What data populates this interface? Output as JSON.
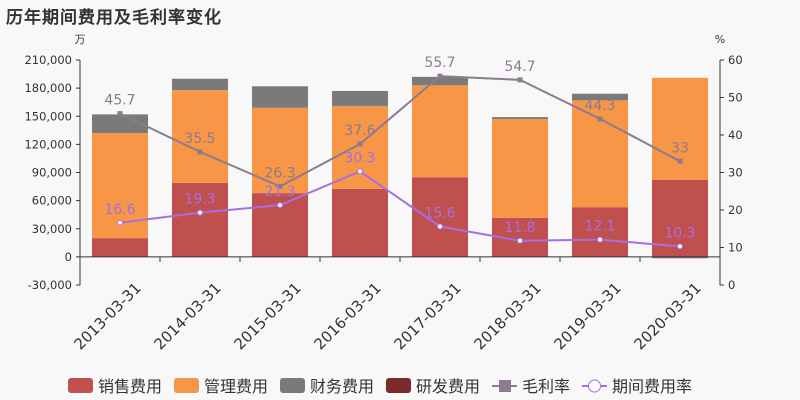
{
  "chart_data": {
    "type": "bar",
    "title": "历年期间费用及毛利率变化",
    "left_unit": "万",
    "right_unit": "%",
    "categories": [
      "2013-03-31",
      "2014-03-31",
      "2015-03-31",
      "2016-03-31",
      "2017-03-31",
      "2018-03-31",
      "2019-03-31",
      "2020-03-31"
    ],
    "left_axis": {
      "min": -30000,
      "max": 210000,
      "step": 30000,
      "ticks": [
        "-30,000",
        "0",
        "30,000",
        "60,000",
        "90,000",
        "120,000",
        "150,000",
        "180,000",
        "210,000"
      ]
    },
    "right_axis": {
      "min": 0,
      "max": 60,
      "step": 10,
      "ticks": [
        "0",
        "10",
        "20",
        "30",
        "40",
        "50",
        "60"
      ]
    },
    "stacked": true,
    "series": [
      {
        "name": "销售费用",
        "kind": "bar",
        "color": "#c0504d",
        "values": [
          20000,
          79000,
          68000,
          72500,
          85000,
          41600,
          53000,
          82000
        ]
      },
      {
        "name": "管理费用",
        "kind": "bar",
        "color": "#f79646",
        "values": [
          112000,
          99000,
          91000,
          88500,
          98000,
          105500,
          114000,
          109000
        ]
      },
      {
        "name": "财务费用",
        "kind": "bar",
        "color": "#7a7a7a",
        "values": [
          20000,
          12000,
          23000,
          16000,
          9000,
          2000,
          7000,
          -1500
        ]
      },
      {
        "name": "研发费用",
        "kind": "bar",
        "color": "#7b2b2b",
        "values": [
          0,
          0,
          0,
          0,
          0,
          0,
          0,
          0
        ]
      },
      {
        "name": "毛利率",
        "kind": "line",
        "axis": "right",
        "color": "#8c7b8f",
        "marker": "square",
        "values": [
          45.7,
          35.5,
          26.3,
          37.6,
          55.7,
          54.7,
          44.3,
          33
        ],
        "labels": [
          "45.7",
          "35.5",
          "26.3",
          "37.6",
          "55.7",
          "54.7",
          "44.3",
          "33"
        ]
      },
      {
        "name": "期间费用率",
        "kind": "line",
        "axis": "right",
        "color": "#a86ee0",
        "marker": "circle",
        "values": [
          16.6,
          19.3,
          21.3,
          30.3,
          15.6,
          11.8,
          12.1,
          10.3
        ],
        "labels": [
          "16.6",
          "19.3",
          "21.3",
          "30.3",
          "15.6",
          "11.8",
          "12.1",
          "10.3"
        ]
      }
    ],
    "grid": false,
    "legend": "bottom"
  }
}
